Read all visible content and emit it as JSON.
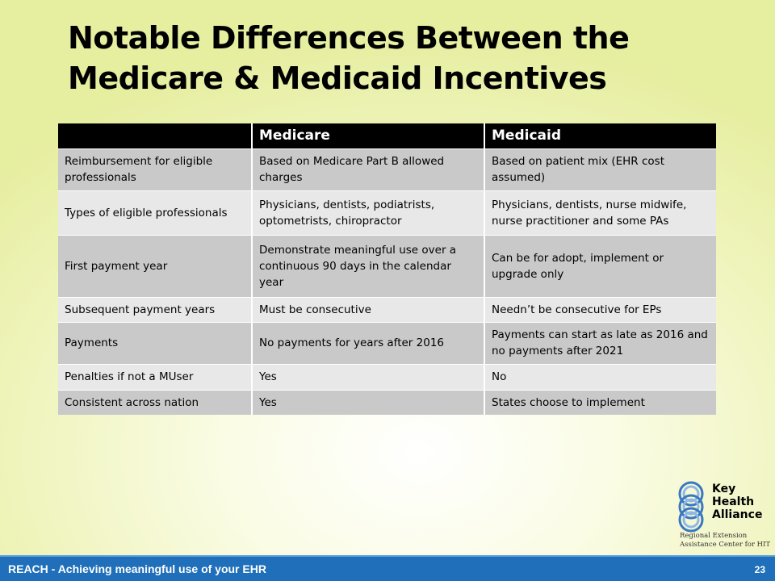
{
  "slide": {
    "title_line1": "Notable Differences Between the",
    "title_line2": "Medicare & Medicaid Incentives"
  },
  "table": {
    "headers": [
      "",
      "Medicare",
      "Medicaid"
    ],
    "rows": [
      [
        "Reimbursement for eligible professionals",
        "Based on Medicare Part B allowed charges",
        "Based on patient mix (EHR cost assumed)"
      ],
      [
        "Types of eligible professionals",
        "Physicians, dentists, podiatrists, optometrists, chiropractor",
        "Physicians, dentists, nurse midwife, nurse practitioner and some PAs"
      ],
      [
        "First payment year",
        "Demonstrate meaningful use over a continuous 90 days in the calendar year",
        "Can be for adopt, implement or upgrade only"
      ],
      [
        "Subsequent payment years",
        "Must be consecutive",
        "Needn’t be consecutive for EPs"
      ],
      [
        "Payments",
        "No payments for years after 2016",
        "Payments can start as late as 2016 and no payments after 2021"
      ],
      [
        "Penalties if not a MUser",
        "Yes",
        "No"
      ],
      [
        "Consistent across nation",
        "Yes",
        "States choose to implement"
      ]
    ]
  },
  "logo": {
    "name_line1": "Key",
    "name_line2": "Health",
    "name_line3": "Alliance",
    "sub_line1": "Regional Extension",
    "sub_line2": "Assistance Center for HIT",
    "ring_color": "#3a78c0"
  },
  "footer": {
    "text": "REACH - Achieving meaningful use of your EHR",
    "page_number": "23",
    "bar_color": "#1f6fba"
  }
}
